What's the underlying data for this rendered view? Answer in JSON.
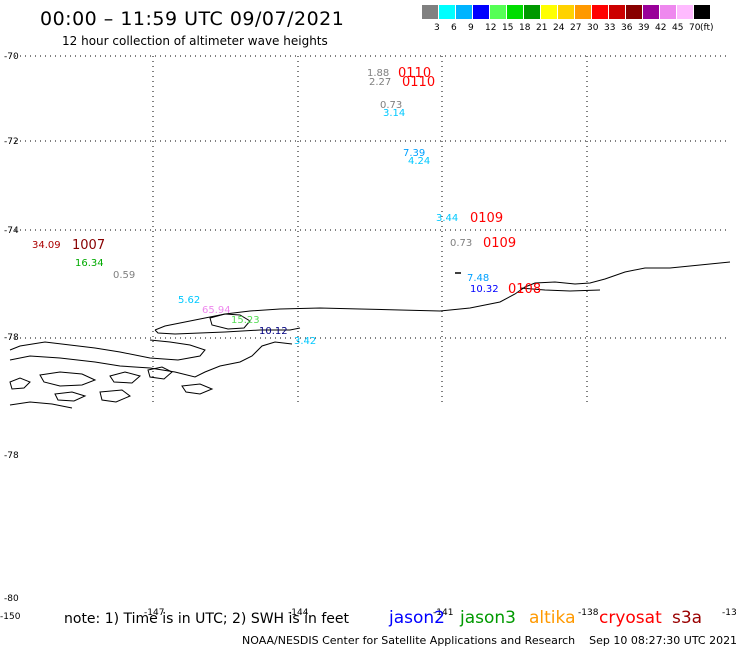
{
  "header": {
    "title": "00:00 – 11:59 UTC 09/07/2021",
    "subtitle": "12 hour collection of altimeter wave heights"
  },
  "legend": {
    "unit": "(ft)",
    "bins": [
      {
        "label": "3",
        "color": "#808080"
      },
      {
        "label": "6",
        "color": "#00ffff"
      },
      {
        "label": "9",
        "color": "#00b4ff"
      },
      {
        "label": "12",
        "color": "#0000ff"
      },
      {
        "label": "15",
        "color": "#55ff55"
      },
      {
        "label": "18",
        "color": "#00dd00"
      },
      {
        "label": "21",
        "color": "#009900"
      },
      {
        "label": "24",
        "color": "#ffff00"
      },
      {
        "label": "27",
        "color": "#ffd200"
      },
      {
        "label": "30",
        "color": "#ff9900"
      },
      {
        "label": "33",
        "color": "#ff0000"
      },
      {
        "label": "36",
        "color": "#cc0000"
      },
      {
        "label": "39",
        "color": "#880000"
      },
      {
        "label": "42",
        "color": "#990099"
      },
      {
        "label": "45",
        "color": "#ee88ee"
      },
      {
        "label": "70",
        "color": "#ffbbff"
      },
      {
        "label": "",
        "color": "#000000"
      }
    ]
  },
  "axes": {
    "lat_labels": [
      "-70",
      "-72",
      "-74",
      "-78",
      "-78",
      "-80"
    ],
    "lon_labels": [
      "-150",
      "-147",
      "-144",
      "-141",
      "-138",
      "-13"
    ]
  },
  "observations": [
    {
      "text": "1.88",
      "color": "#808080"
    },
    {
      "text": "0110",
      "color": "#ff0000"
    },
    {
      "text": "2.27",
      "color": "#808080"
    },
    {
      "text": "0110",
      "color": "#ff0000"
    },
    {
      "text": "0.73",
      "color": "#808080"
    },
    {
      "text": "3.14",
      "color": "#00c8ff"
    },
    {
      "text": "7.39",
      "color": "#00a0ff"
    },
    {
      "text": "4.24",
      "color": "#00c8ff"
    },
    {
      "text": "3.44",
      "color": "#00c8ff"
    },
    {
      "text": "0109",
      "color": "#ff0000"
    },
    {
      "text": "0.73",
      "color": "#808080"
    },
    {
      "text": "0109",
      "color": "#ff0000"
    },
    {
      "text": "34.09",
      "color": "#aa0000"
    },
    {
      "text": "1007",
      "color": "#880000"
    },
    {
      "text": "16.34",
      "color": "#00aa00"
    },
    {
      "text": "0.59",
      "color": "#808080"
    },
    {
      "text": "5.62",
      "color": "#00c8ff"
    },
    {
      "text": "65.94",
      "color": "#ee88ee"
    },
    {
      "text": "15.23",
      "color": "#55dd55"
    },
    {
      "text": "10.12",
      "color": "#000080"
    },
    {
      "text": "3.42",
      "color": "#00c8ff"
    },
    {
      "text": "7.48",
      "color": "#00a0ff"
    },
    {
      "text": "10.32",
      "color": "#0000ff"
    },
    {
      "text": "0108",
      "color": "#ff0000"
    }
  ],
  "note": "note: 1) Time is in UTC; 2) SWH is in feet",
  "satellites": [
    {
      "name": "jason2",
      "color": "#0000ff"
    },
    {
      "name": "jason3",
      "color": "#009900"
    },
    {
      "name": "altika",
      "color": "#ff9900"
    },
    {
      "name": "cryosat",
      "color": "#ff0000"
    },
    {
      "name": "s3a",
      "color": "#990000"
    }
  ],
  "footer": {
    "credit": "NOAA/NESDIS Center for Satellite Applications and Research",
    "timestamp": "Sep 10 08:27:30 UTC 2021"
  }
}
